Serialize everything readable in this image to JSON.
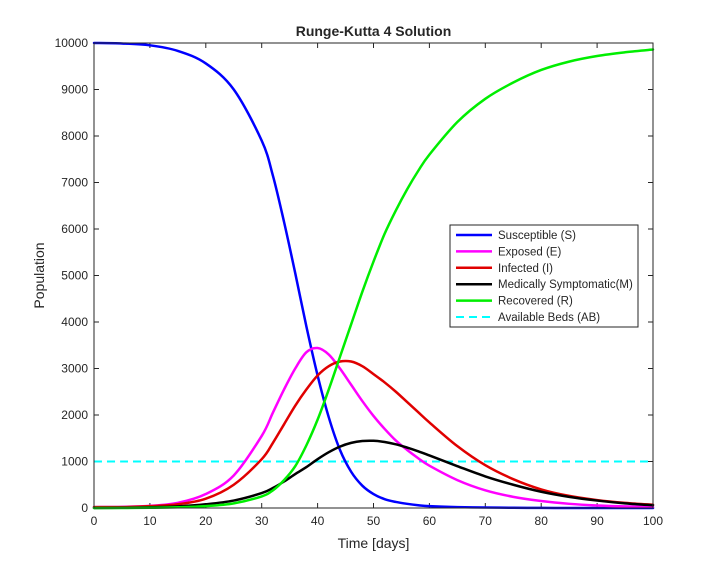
{
  "chart_data": {
    "type": "line",
    "title": "Runge-Kutta 4 Solution",
    "xlabel": "Time [days]",
    "ylabel": "Population",
    "xlim": [
      0,
      100
    ],
    "ylim": [
      0,
      10000
    ],
    "xticks": [
      0,
      10,
      20,
      30,
      40,
      50,
      60,
      70,
      80,
      90,
      100
    ],
    "yticks": [
      0,
      1000,
      2000,
      3000,
      4000,
      5000,
      6000,
      7000,
      8000,
      9000,
      10000
    ],
    "grid": false,
    "legend_position": "right, middle",
    "x": [
      0,
      5,
      10,
      15,
      20,
      25,
      30,
      32,
      34,
      36,
      38,
      40,
      42,
      44,
      46,
      48,
      50,
      52,
      54,
      56,
      58,
      60,
      65,
      70,
      75,
      80,
      85,
      90,
      95,
      100
    ],
    "series": [
      {
        "name": "Susceptible (S)",
        "color": "#0000ff",
        "style": "solid",
        "values": [
          10000,
          9990,
          9950,
          9830,
          9560,
          9000,
          7900,
          7150,
          6150,
          5050,
          3900,
          2850,
          1950,
          1250,
          780,
          480,
          300,
          190,
          130,
          90,
          60,
          40,
          20,
          10,
          5,
          2,
          1,
          0,
          0,
          0
        ]
      },
      {
        "name": "Exposed (E)",
        "color": "#ff00ff",
        "style": "solid",
        "values": [
          20,
          25,
          45,
          110,
          300,
          700,
          1550,
          2050,
          2550,
          3000,
          3350,
          3440,
          3300,
          3000,
          2650,
          2300,
          1980,
          1700,
          1450,
          1250,
          1070,
          910,
          600,
          380,
          240,
          150,
          90,
          55,
          35,
          20
        ]
      },
      {
        "name": "Infected (I)",
        "color": "#e00000",
        "style": "solid",
        "values": [
          20,
          20,
          40,
          80,
          200,
          500,
          1050,
          1400,
          1800,
          2200,
          2550,
          2850,
          3050,
          3150,
          3150,
          3050,
          2880,
          2700,
          2500,
          2280,
          2060,
          1840,
          1330,
          920,
          620,
          400,
          260,
          170,
          110,
          70
        ]
      },
      {
        "name": "Medically Symptomatic(M)",
        "color": "#000000",
        "style": "solid",
        "values": [
          0,
          5,
          15,
          35,
          80,
          160,
          320,
          430,
          570,
          730,
          880,
          1050,
          1200,
          1320,
          1400,
          1440,
          1445,
          1420,
          1370,
          1300,
          1220,
          1130,
          900,
          680,
          500,
          350,
          240,
          160,
          100,
          60
        ]
      },
      {
        "name": "Recovered (R)",
        "color": "#00ee00",
        "style": "solid",
        "values": [
          0,
          0,
          5,
          15,
          40,
          100,
          250,
          380,
          600,
          900,
          1350,
          1900,
          2550,
          3250,
          3950,
          4650,
          5300,
          5900,
          6400,
          6850,
          7250,
          7600,
          8300,
          8800,
          9150,
          9420,
          9600,
          9720,
          9800,
          9860
        ]
      },
      {
        "name": "Available Beds (AB)",
        "color": "#00ffff",
        "style": "dashed",
        "values": [
          1000,
          1000,
          1000,
          1000,
          1000,
          1000,
          1000,
          1000,
          1000,
          1000,
          1000,
          1000,
          1000,
          1000,
          1000,
          1000,
          1000,
          1000,
          1000,
          1000,
          1000,
          1000,
          1000,
          1000,
          1000,
          1000,
          1000,
          1000,
          1000,
          1000
        ]
      }
    ]
  }
}
